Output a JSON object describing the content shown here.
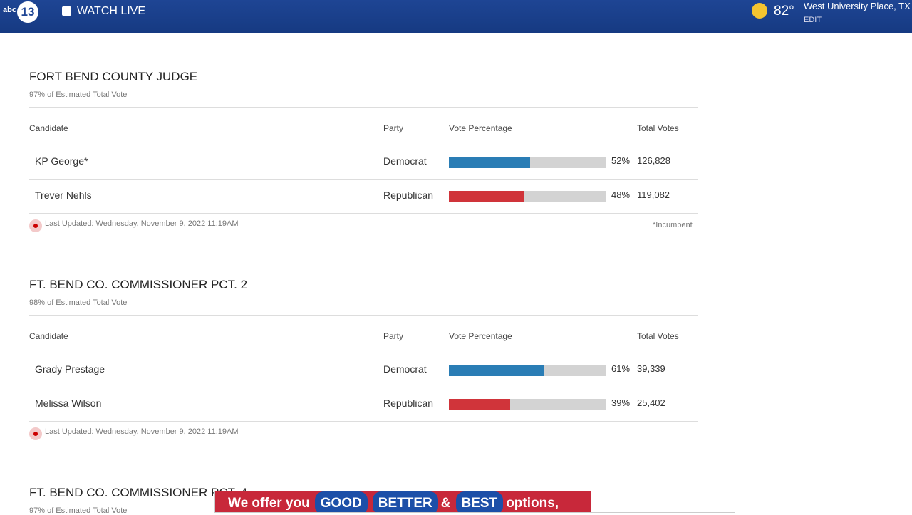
{
  "header": {
    "logo_top": "abc",
    "logo_number": "13",
    "watch_live": "WATCH LIVE",
    "temperature": "82°",
    "location": "West University Place, TX",
    "edit": "EDIT"
  },
  "races": [
    {
      "title": "FORT BEND COUNTY JUDGE",
      "subtitle": "97% of Estimated Total Vote",
      "columns": [
        "Candidate",
        "Party",
        "Vote Percentage",
        "Total Votes"
      ],
      "candidates": [
        {
          "name": "KP George*",
          "party": "Democrat",
          "pct": 52,
          "pct_label": "52%",
          "votes": "126,828",
          "color": "#2a7db5"
        },
        {
          "name": "Trever Nehls",
          "party": "Republican",
          "pct": 48,
          "pct_label": "48%",
          "votes": "119,082",
          "color": "#d0343a"
        }
      ],
      "updated": "Last Updated: Wednesday, November 9, 2022 11:19AM",
      "note": "*Incumbent"
    },
    {
      "title": "FT. BEND CO. COMMISSIONER PCT. 2",
      "subtitle": "98% of Estimated Total Vote",
      "columns": [
        "Candidate",
        "Party",
        "Vote Percentage",
        "Total Votes"
      ],
      "candidates": [
        {
          "name": "Grady Prestage",
          "party": "Democrat",
          "pct": 61,
          "pct_label": "61%",
          "votes": "39,339",
          "color": "#2a7db5"
        },
        {
          "name": "Melissa Wilson",
          "party": "Republican",
          "pct": 39,
          "pct_label": "39%",
          "votes": "25,402",
          "color": "#d0343a"
        }
      ],
      "updated": "Last Updated: Wednesday, November 9, 2022 11:19AM"
    },
    {
      "title": "FT. BEND CO. COMMISSIONER PCT. 4",
      "subtitle": "97% of Estimated Total Vote"
    }
  ],
  "ad": {
    "parts": [
      "We offer you",
      "GOOD",
      "BETTER",
      "&",
      "BEST",
      "options,"
    ]
  }
}
